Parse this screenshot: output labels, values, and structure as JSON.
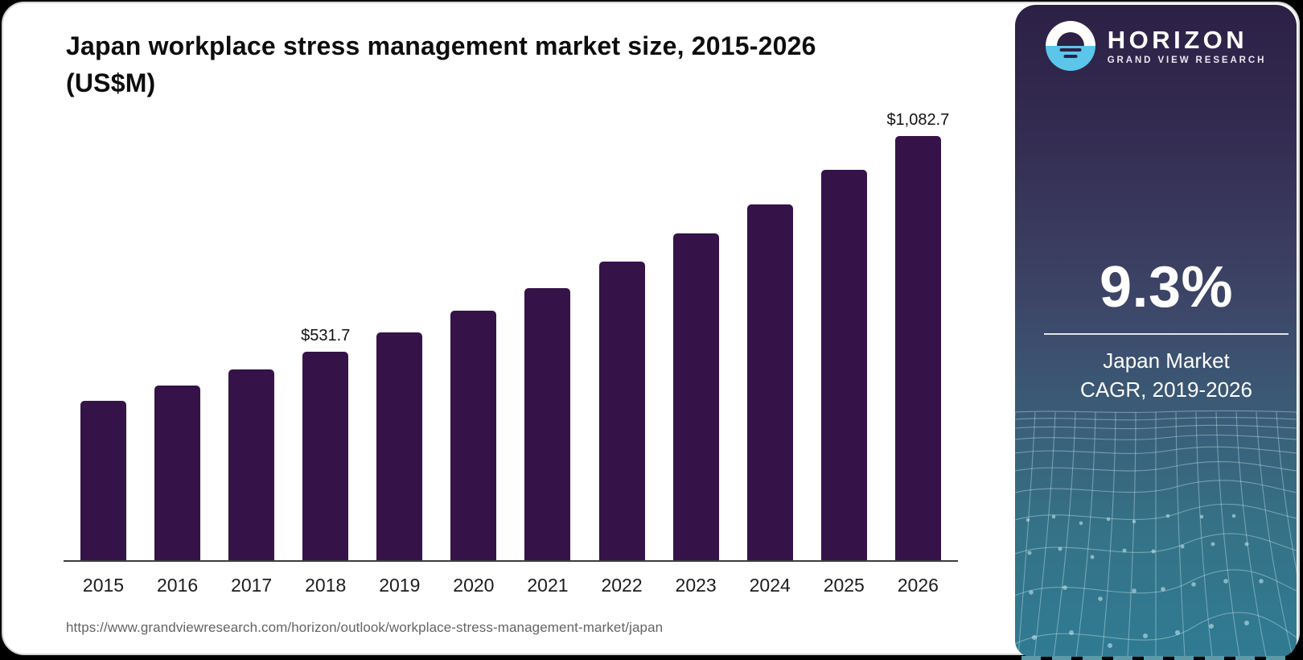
{
  "page": {
    "title": "Japan workplace stress management market size, 2015-2026 (US$M)",
    "source_url": "https://www.grandviewresearch.com/horizon/outlook/workplace-stress-management-market/japan"
  },
  "sidebar": {
    "logo": {
      "wordmark": "HORIZON",
      "subtitle": "GRAND VIEW RESEARCH",
      "icon": "horizon-sun-over-water",
      "icon_blue": "#5bc6ea"
    },
    "stat": {
      "value": "9.3%",
      "caption_line1": "Japan Market",
      "caption_line2": "CAGR, 2019-2026"
    },
    "colors": {
      "gradient_top": "#2c2045",
      "gradient_bottom": "#307b92"
    }
  },
  "chart_data": {
    "type": "bar",
    "title": "Japan workplace stress management market size, 2015-2026 (US$M)",
    "categories": [
      "2015",
      "2016",
      "2017",
      "2018",
      "2019",
      "2020",
      "2021",
      "2022",
      "2023",
      "2024",
      "2025",
      "2026"
    ],
    "values": [
      407,
      446,
      486,
      531.7,
      582,
      636,
      695,
      763,
      835,
      909,
      996,
      1082.7
    ],
    "data_labels": {
      "2018": "$531.7",
      "2026": "$1,082.7"
    },
    "bar_color": "#351349",
    "xlabel": "",
    "ylabel": "",
    "ylim": [
      0,
      1140
    ],
    "grid": false,
    "legend": false,
    "y_axis_shown": false
  }
}
